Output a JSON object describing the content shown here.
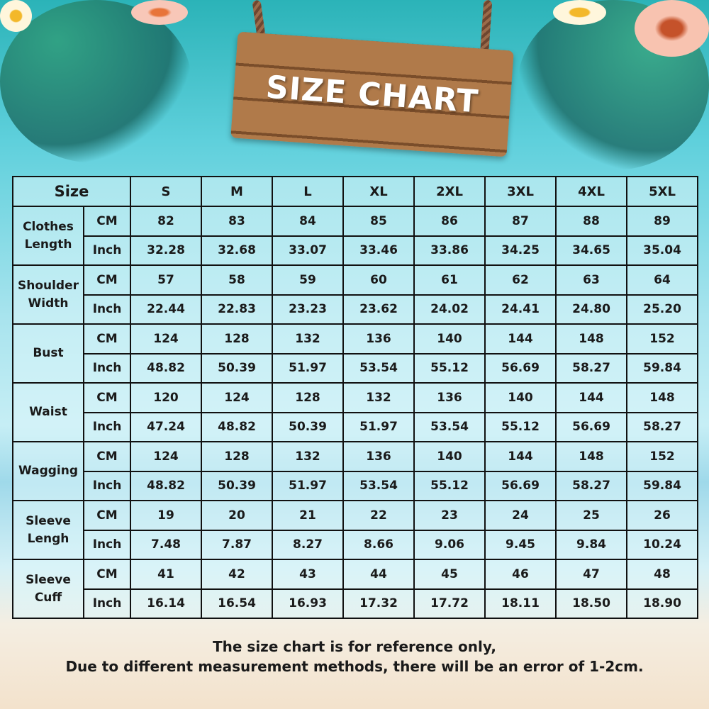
{
  "title": "SIZE CHART",
  "table": {
    "corner": "Size",
    "sizes": [
      "S",
      "M",
      "L",
      "XL",
      "2XL",
      "3XL",
      "4XL",
      "5XL"
    ],
    "rows": [
      {
        "label": "Clothes Length",
        "cm": [
          "82",
          "83",
          "84",
          "85",
          "86",
          "87",
          "88",
          "89"
        ],
        "inch": [
          "32.28",
          "32.68",
          "33.07",
          "33.46",
          "33.86",
          "34.25",
          "34.65",
          "35.04"
        ]
      },
      {
        "label": "Shoulder Width",
        "cm": [
          "57",
          "58",
          "59",
          "60",
          "61",
          "62",
          "63",
          "64"
        ],
        "inch": [
          "22.44",
          "22.83",
          "23.23",
          "23.62",
          "24.02",
          "24.41",
          "24.80",
          "25.20"
        ]
      },
      {
        "label": "Bust",
        "cm": [
          "124",
          "128",
          "132",
          "136",
          "140",
          "144",
          "148",
          "152"
        ],
        "inch": [
          "48.82",
          "50.39",
          "51.97",
          "53.54",
          "55.12",
          "56.69",
          "58.27",
          "59.84"
        ]
      },
      {
        "label": "Waist",
        "cm": [
          "120",
          "124",
          "128",
          "132",
          "136",
          "140",
          "144",
          "148"
        ],
        "inch": [
          "47.24",
          "48.82",
          "50.39",
          "51.97",
          "53.54",
          "55.12",
          "56.69",
          "58.27"
        ]
      },
      {
        "label": "Wagging",
        "cm": [
          "124",
          "128",
          "132",
          "136",
          "140",
          "144",
          "148",
          "152"
        ],
        "inch": [
          "48.82",
          "50.39",
          "51.97",
          "53.54",
          "55.12",
          "56.69",
          "58.27",
          "59.84"
        ]
      },
      {
        "label": "Sleeve Lengh",
        "cm": [
          "19",
          "20",
          "21",
          "22",
          "23",
          "24",
          "25",
          "26"
        ],
        "inch": [
          "7.48",
          "7.87",
          "8.27",
          "8.66",
          "9.06",
          "9.45",
          "9.84",
          "10.24"
        ]
      },
      {
        "label": "Sleeve Cuff",
        "cm": [
          "41",
          "42",
          "43",
          "44",
          "45",
          "46",
          "47",
          "48"
        ],
        "inch": [
          "16.14",
          "16.54",
          "16.93",
          "17.32",
          "17.72",
          "18.11",
          "18.50",
          "18.90"
        ]
      }
    ],
    "unit_cm": "CM",
    "unit_inch": "Inch"
  },
  "note": {
    "line1": "The size chart is for reference only,",
    "line2": "Due to different measurement methods, there will be an error of 1-2cm."
  }
}
